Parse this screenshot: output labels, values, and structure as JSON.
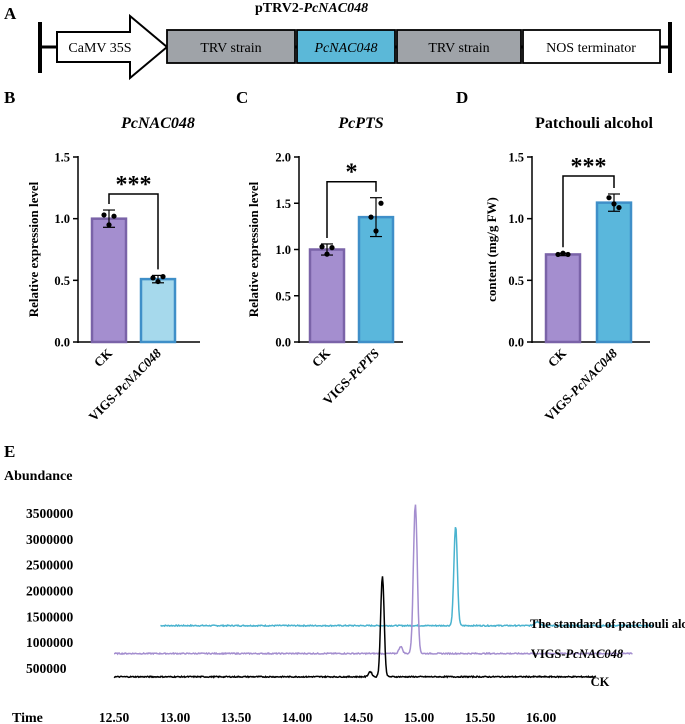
{
  "figure": {
    "panel_a": {
      "letter": "A",
      "title": "pTRV2-",
      "title_gene": "PcNAC048",
      "segments": [
        {
          "label": "CaMV 35S",
          "italic": false,
          "kind": "arrow",
          "fill": "#ffffff"
        },
        {
          "label": "TRV strain",
          "italic": false,
          "kind": "box",
          "fill": "#9fa3a8"
        },
        {
          "label": "PcNAC048",
          "italic": true,
          "kind": "box",
          "fill": "#5bb8d8"
        },
        {
          "label": "TRV strain",
          "italic": false,
          "kind": "box",
          "fill": "#9fa3a8"
        },
        {
          "label": "NOS terminator",
          "italic": false,
          "kind": "box",
          "fill": "#ffffff"
        }
      ]
    },
    "panel_e": {
      "letter": "E",
      "ylabel": "Abundance",
      "xlabel": "Time",
      "legend": [
        {
          "prefix": "The standard of patchouli alcohol",
          "gene": "",
          "color": "#4ab3cf"
        },
        {
          "prefix": "VIGS-",
          "gene": "PcNAC048",
          "color": "#a48ecf"
        },
        {
          "prefix": "CK",
          "gene": "",
          "color": "#000000"
        }
      ]
    }
  },
  "chart_data": [
    {
      "type": "bar",
      "panel": "B",
      "title": "PcNAC048",
      "title_italic": true,
      "ylabel": "Relative expression level",
      "ylim": [
        0,
        1.5
      ],
      "yticks": [
        "0.0",
        "0.5",
        "1.0",
        "1.5"
      ],
      "categories": [
        {
          "prefix": "CK",
          "gene": ""
        },
        {
          "prefix": "VIGS-",
          "gene": "PcNAC048"
        }
      ],
      "values": [
        1.0,
        0.51
      ],
      "errors": [
        0.07,
        0.03
      ],
      "points": [
        [
          1.03,
          0.95,
          1.02
        ],
        [
          0.52,
          0.49,
          0.53
        ]
      ],
      "fills": [
        "#a48ecf",
        "#a6d9ec"
      ],
      "edges": [
        "#7a63a8",
        "#3f8fc8"
      ],
      "significance": "***"
    },
    {
      "type": "bar",
      "panel": "C",
      "title": "PcPTS",
      "title_italic": true,
      "ylabel": "Relative expression level",
      "ylim": [
        0,
        2.0
      ],
      "yticks": [
        "0.0",
        "0.5",
        "1.0",
        "1.5",
        "2.0"
      ],
      "categories": [
        {
          "prefix": "CK",
          "gene": ""
        },
        {
          "prefix": "VIGS-",
          "gene": "PcPTS"
        }
      ],
      "values": [
        1.0,
        1.35
      ],
      "errors": [
        0.06,
        0.21
      ],
      "points": [
        [
          1.03,
          0.95,
          1.02
        ],
        [
          1.35,
          1.2,
          1.5
        ]
      ],
      "fills": [
        "#a48ecf",
        "#5ab7dc"
      ],
      "edges": [
        "#7a63a8",
        "#3f8fc8"
      ],
      "significance": "*"
    },
    {
      "type": "bar",
      "panel": "D",
      "title": "Patchouli alcohol",
      "title_italic": false,
      "ylabel": "content (mg/g FW)",
      "ylim": [
        0,
        1.5
      ],
      "yticks": [
        "0.0",
        "0.5",
        "1.0",
        "1.5"
      ],
      "categories": [
        {
          "prefix": "CK",
          "gene": ""
        },
        {
          "prefix": "VIGS-",
          "gene": "PcNAC048"
        }
      ],
      "values": [
        0.71,
        1.13
      ],
      "errors": [
        0.01,
        0.07
      ],
      "points": [
        [
          0.71,
          0.72,
          0.71
        ],
        [
          1.17,
          1.12,
          1.09
        ]
      ],
      "fills": [
        "#a48ecf",
        "#5ab7dc"
      ],
      "edges": [
        "#7a63a8",
        "#3f8fc8"
      ],
      "significance": "***"
    },
    {
      "type": "line",
      "panel": "E",
      "xlim": [
        12.4,
        16.95
      ],
      "ylim": [
        200000,
        3800000
      ],
      "xticks": [
        "12.50",
        "13.00",
        "13.50",
        "14.00",
        "14.50",
        "15.00",
        "15.50",
        "16.00"
      ],
      "yticks": [
        "500000",
        "1000000",
        "1500000",
        "2000000",
        "2500000",
        "3000000",
        "3500000"
      ],
      "series": [
        {
          "name": "The standard of patchouli alcohol",
          "color": "#4ab3cf",
          "x_start": 12.88,
          "x_end": 16.92,
          "baseline": 1320000,
          "peaks": [
            [
              15.3,
              3250000,
              0.02
            ],
            [
              15.97,
              1400000,
              0.03
            ]
          ]
        },
        {
          "name": "VIGS-PcNAC048",
          "color": "#a48ecf",
          "x_start": 12.5,
          "x_end": 16.75,
          "baseline": 780000,
          "peaks": [
            [
              14.97,
              3680000,
              0.022
            ],
            [
              14.85,
              920000,
              0.02
            ]
          ]
        },
        {
          "name": "CK",
          "color": "#000000",
          "x_start": 12.5,
          "x_end": 16.45,
          "baseline": 330000,
          "peaks": [
            [
              14.7,
              2280000,
              0.02
            ],
            [
              14.6,
              430000,
              0.02
            ]
          ]
        }
      ]
    }
  ]
}
